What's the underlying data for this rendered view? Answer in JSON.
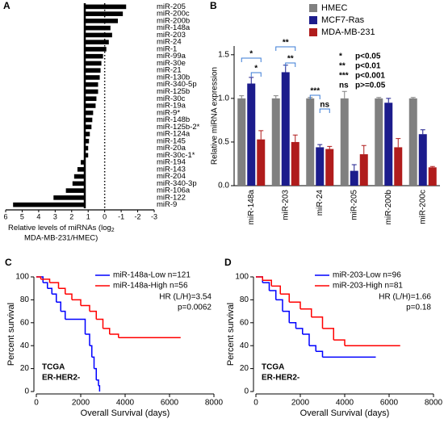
{
  "chart_data": [
    {
      "type": "hbar",
      "panel": "A",
      "categories": [
        "miR-205",
        "miR-200c",
        "miR-200b",
        "miR-148a",
        "miR-203",
        "miR-24",
        "miR-1",
        "miR-99a",
        "miR-30e",
        "miR-21",
        "miR-130b",
        "miR-340-5p",
        "miR-125b",
        "miR-30c",
        "miR-19a",
        "miR-9*",
        "miR-148b",
        "miR-125b-2*",
        "miR-124a",
        "miR-145",
        "miR-20a",
        "miR-30c-1*",
        "miR-194",
        "miR-143",
        "miR-204",
        "miR-340-3p",
        "miR-106a",
        "miR-122",
        "miR-9"
      ],
      "values": [
        -1.3,
        -1.1,
        -0.8,
        -0.35,
        -0.45,
        -0.25,
        -0.1,
        0.1,
        0.2,
        0.25,
        0.3,
        0.4,
        0.4,
        0.5,
        0.55,
        0.7,
        0.75,
        0.8,
        0.9,
        0.95,
        1.0,
        1.0,
        1.45,
        1.65,
        1.85,
        1.95,
        2.35,
        3.1,
        5.55
      ],
      "color": "#000000",
      "xlim": [
        6,
        -3
      ],
      "xticks": [
        6,
        5,
        4,
        3,
        2,
        1,
        0,
        -1,
        -2,
        -3
      ],
      "xlabel": [
        "Relative levels of miRNAs (log",
        "2",
        "MDA-MB-231/HMEC)"
      ]
    },
    {
      "type": "bar",
      "panel": "B",
      "categories": [
        "miR-148a",
        "miR-203",
        "miR-24",
        "miR-205",
        "miR-200b",
        "miR-200c"
      ],
      "series": [
        {
          "name": "HMEC",
          "color": "#808080",
          "values": [
            1.0,
            1.0,
            1.0,
            1.0,
            1.0,
            1.0
          ],
          "errors": [
            0.03,
            0.03,
            0.01,
            0.08,
            0.01,
            0.01
          ]
        },
        {
          "name": "MCF7-Ras",
          "color": "#1c1c8c",
          "values": [
            1.17,
            1.3,
            0.44,
            0.17,
            0.95,
            0.59
          ],
          "errors": [
            0.07,
            0.08,
            0.03,
            0.07,
            0.05,
            0.05
          ]
        },
        {
          "name": "MDA-MB-231",
          "color": "#b01c1c",
          "values": [
            0.53,
            0.5,
            0.42,
            0.36,
            0.44,
            0.21
          ],
          "errors": [
            0.1,
            0.08,
            0.03,
            0.1,
            0.1,
            0.01
          ]
        }
      ],
      "ylim": [
        0,
        1.6
      ],
      "yticks": [
        {
          "value": 0,
          "label": "0.0"
        },
        0.5,
        {
          "value": 1,
          "label": "1.0"
        },
        1.5
      ],
      "ylabel": "Relative miRNA expression",
      "annotations": [
        "*",
        "*",
        "**",
        "**",
        "***",
        "ns"
      ],
      "key": [
        [
          "*",
          "p<0.05"
        ],
        [
          "**",
          "p<0.01"
        ],
        [
          "***",
          "p<0.001"
        ],
        [
          "ns",
          "p>=0.05"
        ]
      ]
    },
    {
      "type": "line",
      "panel": "C",
      "drawstyle": "steps-post",
      "series": [
        {
          "name": "miR-148a-Low n=121",
          "color": "#0000ff",
          "x": [
            0,
            300,
            500,
            700,
            900,
            1100,
            1300,
            2000,
            2200,
            2400,
            2500,
            2600,
            2700,
            2800,
            2850
          ],
          "values": [
            100,
            95,
            90,
            85,
            78,
            70,
            63,
            63,
            50,
            40,
            30,
            20,
            10,
            5,
            0
          ]
        },
        {
          "name": "miR-148a-High n=56",
          "color": "#ff0000",
          "x": [
            0,
            200,
            600,
            1000,
            1300,
            1600,
            2000,
            2400,
            2700,
            3000,
            3300,
            3700,
            6500
          ],
          "values": [
            100,
            98,
            95,
            90,
            85,
            80,
            75,
            70,
            63,
            55,
            50,
            47,
            47
          ]
        }
      ],
      "xlim": [
        0,
        8000
      ],
      "xticks": [
        0,
        2000,
        4000,
        6000,
        8000
      ],
      "ylim": [
        0,
        100
      ],
      "yticks": [
        0,
        20,
        40,
        60,
        80,
        100
      ],
      "xlabel": "Overall Survival (days)",
      "ylabel": "Percent survival",
      "annotations": [
        "HR (L/H)=3.54",
        "p=0.0062"
      ],
      "inset_text": [
        "TCGA",
        "ER-HER2-"
      ]
    },
    {
      "type": "line",
      "panel": "D",
      "drawstyle": "steps-post",
      "series": [
        {
          "name": "miR-203-Low n=96",
          "color": "#0000ff",
          "x": [
            0,
            300,
            600,
            900,
            1200,
            1500,
            1800,
            2100,
            2400,
            2700,
            3000,
            5400
          ],
          "values": [
            100,
            95,
            88,
            80,
            70,
            60,
            55,
            50,
            40,
            35,
            30,
            30
          ]
        },
        {
          "name": "miR-203-High n=81",
          "color": "#ff0000",
          "x": [
            0,
            300,
            700,
            1100,
            1500,
            2000,
            2500,
            3000,
            3500,
            4000,
            6500
          ],
          "values": [
            100,
            97,
            92,
            85,
            78,
            72,
            65,
            55,
            45,
            40,
            40
          ]
        }
      ],
      "xlim": [
        0,
        8000
      ],
      "xticks": [
        0,
        2000,
        4000,
        6000,
        8000
      ],
      "ylim": [
        0,
        100
      ],
      "yticks": [
        0,
        20,
        40,
        60,
        80,
        100
      ],
      "xlabel": "Overall Survival (days)",
      "ylabel": "Percent survival",
      "annotations": [
        "HR (L/H)=1.66",
        "p=0.18"
      ],
      "inset_text": [
        "TCGA",
        "ER-HER2-"
      ]
    }
  ]
}
